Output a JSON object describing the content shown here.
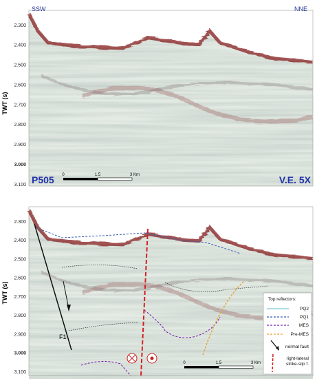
{
  "top_panel": {
    "left_label": "SSW",
    "right_label": "NNE",
    "y_axis_label": "TWT (s)",
    "y_ticks": [
      "2.300",
      "2.400",
      "2.500",
      "2.600",
      "2.700",
      "2.800",
      "2.900",
      "3.000",
      "3.100"
    ],
    "profile": "P505",
    "exaggeration": "V.E. 5X",
    "scale": [
      "0",
      "1.5",
      "3 Km"
    ]
  },
  "bottom_panel": {
    "y_axis_label": "TWT (s)",
    "y_ticks": [
      "2.300",
      "2.400",
      "2.500",
      "2.600",
      "2.700",
      "2.800",
      "2.900",
      "3.000",
      "3.100"
    ],
    "fault_label": "F1",
    "scale": [
      "0",
      "1.5",
      "3 Km"
    ],
    "legend": {
      "title": "Top reflectors:",
      "items": [
        "PQ2",
        "PQ1",
        "MES",
        "Pre-MES",
        "normal fault"
      ],
      "strike_slip_label": [
        "right-lateral",
        "strike-slip f."
      ]
    }
  }
}
